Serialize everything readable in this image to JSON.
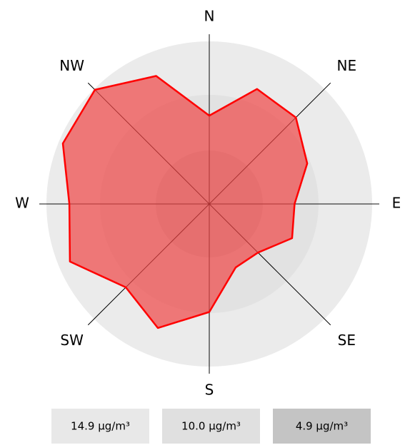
{
  "chart_data": {
    "type": "radar",
    "categories": [
      "N",
      null,
      "NE",
      null,
      "E",
      null,
      "SE",
      null,
      "S",
      null,
      "SW",
      null,
      "W",
      null,
      "NW",
      null
    ],
    "values": [
      8.1,
      11.4,
      11.2,
      9.7,
      7.8,
      8.2,
      6.3,
      6.3,
      9.9,
      12.3,
      10.8,
      13.8,
      12.8,
      14.5,
      14.8,
      12.7
    ],
    "color": "#ff0000",
    "rlim": [
      0,
      14.9
    ],
    "rticks": [
      {
        "value": 14.9,
        "label": "14.9 µg/m³"
      },
      {
        "value": 10.0,
        "label": "10.0 µg/m³"
      },
      {
        "value": 4.9,
        "label": "4.9 µg/m³"
      }
    ],
    "ring_colors": [
      "#ebebeb",
      "#e2e2e2",
      "#cfcfcf"
    ],
    "legend_colors": [
      "#e8e8e8",
      "#e0e0e0",
      "#c4c4c4"
    ]
  }
}
